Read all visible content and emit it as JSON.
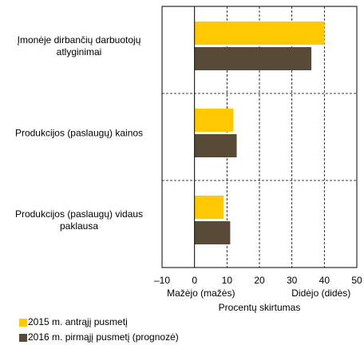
{
  "chart_data": {
    "type": "bar",
    "orientation": "horizontal",
    "categories": [
      "Įmonėje dirbančių darbuotojų atlyginimai",
      "Produkcijos (paslaugų) kainos",
      "Produkcijos (paslaugų) vidaus paklausa"
    ],
    "series": [
      {
        "name": "2015 m. antrąjį pusmetį",
        "color": "#ffc800",
        "values": [
          40,
          12,
          9
        ]
      },
      {
        "name": "2016 m. pirmąjį pusmetį (prognozė)",
        "color": "#574a36",
        "values": [
          36,
          13,
          11
        ]
      }
    ],
    "xlim": [
      -10,
      50
    ],
    "xticks": [
      {
        "value": -10,
        "label": "–10"
      },
      0,
      10,
      20,
      30,
      40,
      50
    ],
    "xlabel": "Procentų skirtumas",
    "annotations": [
      "Mažėjo (mažės)",
      "Didėjo (didės)"
    ],
    "grid": true,
    "legend": "bottom-left"
  }
}
